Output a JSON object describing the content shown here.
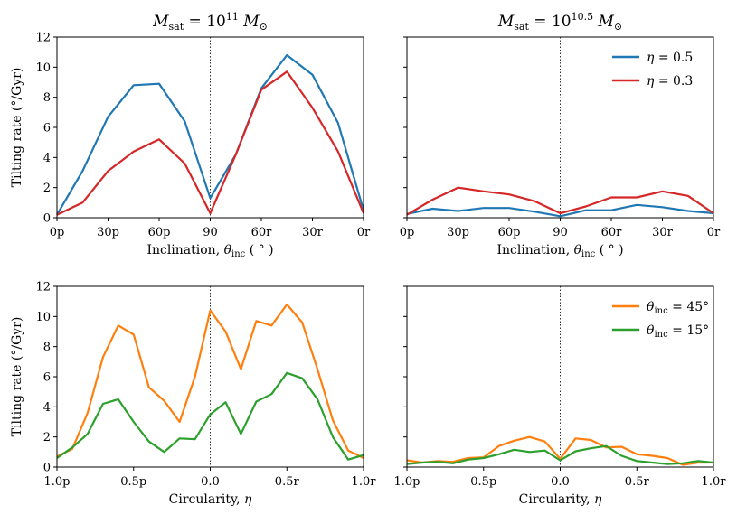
{
  "chart_data": [
    {
      "panel": "top-left",
      "type": "line",
      "title": "M_sat = 10^11 M_⊙",
      "title_parts": {
        "m": "M",
        "sub": "sat",
        "eq": " = 10",
        "sup": "11",
        "m2": " M",
        "sub2": "⊙"
      },
      "xlabel": "Inclination, θ_inc (°)",
      "xlabel_parts": {
        "main": "Inclination, ",
        "sym": "θ",
        "sub": "inc",
        "tail": " ( ° )"
      },
      "ylabel": "Tilting rate (°/Gyr)",
      "x_ticks": [
        0,
        15,
        30,
        45,
        60,
        75,
        90
      ],
      "x_tick_labels": [
        "0p",
        "30p",
        "60p",
        "90",
        "60r",
        "30r",
        "0r"
      ],
      "x_tick_positions": [
        0,
        30,
        60,
        90,
        120,
        150,
        180
      ],
      "xlim": [
        0,
        180
      ],
      "y_ticks": [
        0,
        2,
        4,
        6,
        8,
        10,
        12
      ],
      "y_tick_labels": [
        "0",
        "2",
        "4",
        "6",
        "8",
        "10",
        "12"
      ],
      "ylim": [
        0,
        12
      ],
      "vline": 90,
      "legend": null,
      "series": [
        {
          "name": "η = 0.5",
          "color": "#1f77b4",
          "x": [
            0,
            15,
            30,
            45,
            60,
            75,
            90,
            105,
            120,
            135,
            150,
            165,
            180
          ],
          "y": [
            0.2,
            3.1,
            6.7,
            8.8,
            8.9,
            6.4,
            1.3,
            4.2,
            8.6,
            10.8,
            9.5,
            6.3,
            0.5
          ]
        },
        {
          "name": "η = 0.3",
          "color": "#d62728",
          "x": [
            0,
            15,
            30,
            45,
            60,
            75,
            90,
            105,
            120,
            135,
            150,
            165,
            180
          ],
          "y": [
            0.2,
            1.0,
            3.1,
            4.4,
            5.2,
            3.6,
            0.3,
            4.2,
            8.5,
            9.7,
            7.3,
            4.4,
            0.3
          ]
        }
      ]
    },
    {
      "panel": "top-right",
      "type": "line",
      "title": "M_sat = 10^10.5 M_⊙",
      "title_parts": {
        "m": "M",
        "sub": "sat",
        "eq": " = 10",
        "sup": "10.5",
        "m2": " M",
        "sub2": "⊙"
      },
      "xlabel": "Inclination, θ_inc (°)",
      "xlabel_parts": {
        "main": "Inclination, ",
        "sym": "θ",
        "sub": "inc",
        "tail": " ( ° )"
      },
      "ylabel": "",
      "x_tick_labels": [
        "0p",
        "30p",
        "60p",
        "90",
        "60r",
        "30r",
        "0r"
      ],
      "x_tick_positions": [
        0,
        30,
        60,
        90,
        120,
        150,
        180
      ],
      "xlim": [
        0,
        180
      ],
      "y_ticks": [
        0,
        2,
        4,
        6,
        8,
        10,
        12
      ],
      "y_tick_labels": [],
      "ylim": [
        0,
        12
      ],
      "vline": 90,
      "legend": {
        "placement": "top-right",
        "entries": [
          {
            "prefix": "η",
            "sub": "",
            "value": " = 0.5",
            "color": "#1f77b4"
          },
          {
            "prefix": "η",
            "sub": "",
            "value": " = 0.3",
            "color": "#d62728"
          }
        ]
      },
      "series": [
        {
          "name": "η = 0.5",
          "color": "#1f77b4",
          "x": [
            0,
            15,
            30,
            45,
            60,
            75,
            90,
            105,
            120,
            135,
            150,
            165,
            180
          ],
          "y": [
            0.25,
            0.6,
            0.45,
            0.65,
            0.65,
            0.4,
            0.1,
            0.5,
            0.5,
            0.85,
            0.7,
            0.45,
            0.3
          ]
        },
        {
          "name": "η = 0.3",
          "color": "#d62728",
          "x": [
            0,
            15,
            30,
            45,
            60,
            75,
            90,
            105,
            120,
            135,
            150,
            165,
            180
          ],
          "y": [
            0.2,
            1.2,
            2.0,
            1.75,
            1.55,
            1.1,
            0.3,
            0.75,
            1.35,
            1.35,
            1.75,
            1.45,
            0.3
          ]
        }
      ]
    },
    {
      "panel": "bottom-left",
      "type": "line",
      "title": "",
      "xlabel": "Circularity, η",
      "xlabel_parts": {
        "main": "Circularity, ",
        "sym": "η",
        "sub": "",
        "tail": ""
      },
      "ylabel": "Tilting rate (°/Gyr)",
      "x_tick_labels": [
        "1.0p",
        "0.5p",
        "0.0",
        "0.5r",
        "1.0r"
      ],
      "x_tick_positions": [
        -1.0,
        -0.5,
        0.0,
        0.5,
        1.0
      ],
      "xlim": [
        -1.0,
        1.0
      ],
      "y_ticks": [
        0,
        2,
        4,
        6,
        8,
        10,
        12
      ],
      "y_tick_labels": [
        "0",
        "2",
        "4",
        "6",
        "8",
        "10",
        "12"
      ],
      "ylim": [
        0,
        12
      ],
      "vline": 0,
      "legend": null,
      "series": [
        {
          "name": "θ_inc = 45°",
          "color": "#ff7f0e",
          "x": [
            -1.0,
            -0.9,
            -0.8,
            -0.7,
            -0.6,
            -0.5,
            -0.4,
            -0.3,
            -0.2,
            -0.1,
            0.0,
            0.1,
            0.2,
            0.3,
            0.4,
            0.5,
            0.6,
            0.7,
            0.8,
            0.9,
            1.0
          ],
          "y": [
            0.7,
            1.2,
            3.6,
            7.3,
            9.4,
            8.8,
            5.3,
            4.4,
            3.0,
            6.0,
            10.4,
            9.0,
            6.5,
            9.7,
            9.4,
            10.8,
            9.6,
            6.5,
            3.1,
            1.1,
            0.6
          ]
        },
        {
          "name": "θ_inc = 15°",
          "color": "#2ca02c",
          "x": [
            -1.0,
            -0.9,
            -0.8,
            -0.7,
            -0.6,
            -0.5,
            -0.4,
            -0.3,
            -0.2,
            -0.1,
            0.0,
            0.1,
            0.2,
            0.3,
            0.4,
            0.5,
            0.6,
            0.7,
            0.8,
            0.9,
            1.0
          ],
          "y": [
            0.6,
            1.3,
            2.2,
            4.2,
            4.5,
            3.0,
            1.7,
            1.0,
            1.9,
            1.85,
            3.5,
            4.3,
            2.2,
            4.35,
            4.85,
            6.25,
            5.9,
            4.5,
            2.0,
            0.5,
            0.8
          ]
        }
      ]
    },
    {
      "panel": "bottom-right",
      "type": "line",
      "title": "",
      "xlabel": "Circularity, η",
      "xlabel_parts": {
        "main": "Circularity, ",
        "sym": "η",
        "sub": "",
        "tail": ""
      },
      "ylabel": "",
      "x_tick_labels": [
        "1.0p",
        "0.5p",
        "0.0",
        "0.5r",
        "1.0r"
      ],
      "x_tick_positions": [
        -1.0,
        -0.5,
        0.0,
        0.5,
        1.0
      ],
      "xlim": [
        -1.0,
        1.0
      ],
      "y_ticks": [
        0,
        2,
        4,
        6,
        8,
        10,
        12
      ],
      "y_tick_labels": [],
      "ylim": [
        0,
        12
      ],
      "vline": 0,
      "legend": {
        "placement": "top-right",
        "entries": [
          {
            "prefix": "θ",
            "sub": "inc",
            "value": " = 45°",
            "color": "#ff7f0e"
          },
          {
            "prefix": "θ",
            "sub": "inc",
            "value": " = 15°",
            "color": "#2ca02c"
          }
        ]
      },
      "series": [
        {
          "name": "θ_inc = 45°",
          "color": "#ff7f0e",
          "x": [
            -1.0,
            -0.9,
            -0.8,
            -0.7,
            -0.6,
            -0.5,
            -0.4,
            -0.3,
            -0.2,
            -0.1,
            0.0,
            0.1,
            0.2,
            0.3,
            0.4,
            0.5,
            0.6,
            0.7,
            0.8,
            0.9,
            1.0
          ],
          "y": [
            0.45,
            0.3,
            0.4,
            0.35,
            0.6,
            0.65,
            1.4,
            1.75,
            2.0,
            1.7,
            0.55,
            1.9,
            1.8,
            1.3,
            1.35,
            0.85,
            0.75,
            0.6,
            0.15,
            0.3,
            0.3
          ]
        },
        {
          "name": "θ_inc = 15°",
          "color": "#2ca02c",
          "x": [
            -1.0,
            -0.9,
            -0.8,
            -0.7,
            -0.6,
            -0.5,
            -0.4,
            -0.3,
            -0.2,
            -0.1,
            0.0,
            0.1,
            0.2,
            0.3,
            0.4,
            0.5,
            0.6,
            0.7,
            0.8,
            0.9,
            1.0
          ],
          "y": [
            0.2,
            0.3,
            0.35,
            0.25,
            0.5,
            0.6,
            0.85,
            1.15,
            1.0,
            1.1,
            0.45,
            1.05,
            1.25,
            1.4,
            0.75,
            0.4,
            0.3,
            0.2,
            0.25,
            0.4,
            0.3
          ]
        }
      ]
    }
  ]
}
